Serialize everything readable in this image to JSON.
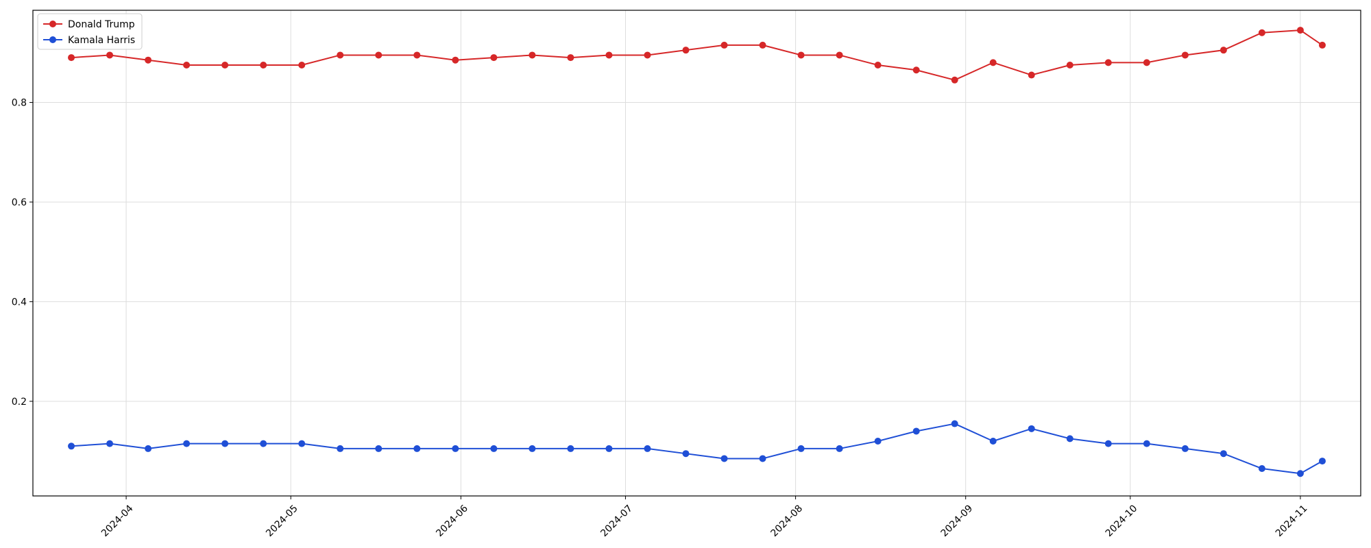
{
  "chart_data": {
    "type": "line",
    "title": "",
    "xlabel": "",
    "ylabel": "",
    "xlim": [
      "2024-03-15",
      "2024-11-12"
    ],
    "ylim": [
      0.01,
      0.985
    ],
    "grid": true,
    "legend": "top-left",
    "x_ticks": [
      "2024-04",
      "2024-05",
      "2024-06",
      "2024-07",
      "2024-08",
      "2024-09",
      "2024-10",
      "2024-11"
    ],
    "y_ticks": [
      "0.2",
      "0.4",
      "0.6",
      "0.8"
    ],
    "x": [
      "2024-03-22",
      "2024-03-29",
      "2024-04-05",
      "2024-04-12",
      "2024-04-19",
      "2024-04-26",
      "2024-05-03",
      "2024-05-10",
      "2024-05-17",
      "2024-05-24",
      "2024-05-31",
      "2024-06-07",
      "2024-06-14",
      "2024-06-21",
      "2024-06-28",
      "2024-07-05",
      "2024-07-12",
      "2024-07-19",
      "2024-07-26",
      "2024-08-02",
      "2024-08-09",
      "2024-08-16",
      "2024-08-23",
      "2024-08-30",
      "2024-09-06",
      "2024-09-13",
      "2024-09-20",
      "2024-09-27",
      "2024-10-04",
      "2024-10-11",
      "2024-10-18",
      "2024-10-25",
      "2024-11-01",
      "2024-11-05"
    ],
    "series": [
      {
        "name": "Donald Trump",
        "color": "#d62728",
        "values": [
          0.89,
          0.895,
          0.885,
          0.875,
          0.875,
          0.875,
          0.875,
          0.895,
          0.895,
          0.895,
          0.885,
          0.89,
          0.895,
          0.89,
          0.895,
          0.895,
          0.905,
          0.915,
          0.915,
          0.895,
          0.895,
          0.875,
          0.865,
          0.845,
          0.88,
          0.855,
          0.875,
          0.88,
          0.88,
          0.895,
          0.905,
          0.94,
          0.945,
          0.915
        ]
      },
      {
        "name": "Kamala Harris",
        "color": "#1f4fd6",
        "values": [
          0.11,
          0.115,
          0.105,
          0.115,
          0.115,
          0.115,
          0.115,
          0.105,
          0.105,
          0.105,
          0.105,
          0.105,
          0.105,
          0.105,
          0.105,
          0.105,
          0.095,
          0.085,
          0.085,
          0.105,
          0.105,
          0.12,
          0.14,
          0.155,
          0.12,
          0.145,
          0.125,
          0.115,
          0.115,
          0.105,
          0.095,
          0.065,
          0.055,
          0.08
        ]
      }
    ]
  }
}
